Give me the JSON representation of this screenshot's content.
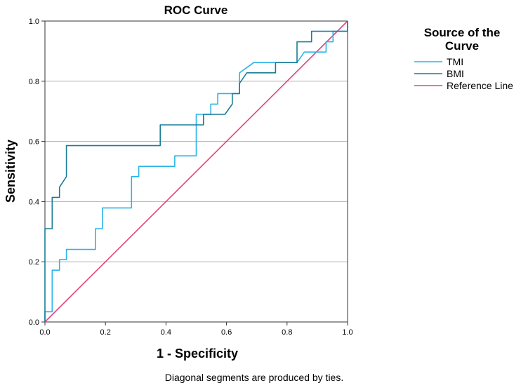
{
  "chart_data": {
    "type": "line",
    "title": "ROC Curve",
    "xlabel": "1 - Specificity",
    "ylabel": "Sensitivity",
    "xlim": [
      0,
      1
    ],
    "ylim": [
      0,
      1
    ],
    "x_ticks": [
      "0.0",
      "0.2",
      "0.4",
      "0.6",
      "0.8",
      "1.0"
    ],
    "y_ticks": [
      "0.0",
      "0.2",
      "0.4",
      "0.6",
      "0.8",
      "1.0"
    ],
    "grid": "horizontal",
    "legend": {
      "title": "Source of the Curve",
      "position": "right",
      "entries": [
        "TMI",
        "BMI",
        "Reference Line"
      ]
    },
    "footnote": "Diagonal segments are produced by ties.",
    "series": [
      {
        "name": "TMI",
        "color": "#29b5e8",
        "points": [
          [
            0,
            0
          ],
          [
            0,
            0.034
          ],
          [
            0.024,
            0.034
          ],
          [
            0.024,
            0.172
          ],
          [
            0.048,
            0.172
          ],
          [
            0.048,
            0.207
          ],
          [
            0.071,
            0.207
          ],
          [
            0.071,
            0.241
          ],
          [
            0.167,
            0.241
          ],
          [
            0.167,
            0.31
          ],
          [
            0.19,
            0.31
          ],
          [
            0.19,
            0.379
          ],
          [
            0.286,
            0.379
          ],
          [
            0.286,
            0.483
          ],
          [
            0.31,
            0.483
          ],
          [
            0.31,
            0.517
          ],
          [
            0.429,
            0.517
          ],
          [
            0.429,
            0.552
          ],
          [
            0.5,
            0.552
          ],
          [
            0.5,
            0.69
          ],
          [
            0.548,
            0.69
          ],
          [
            0.548,
            0.724
          ],
          [
            0.571,
            0.724
          ],
          [
            0.571,
            0.759
          ],
          [
            0.643,
            0.759
          ],
          [
            0.643,
            0.828
          ],
          [
            0.69,
            0.862
          ],
          [
            0.833,
            0.862
          ],
          [
            0.857,
            0.897
          ],
          [
            0.929,
            0.897
          ],
          [
            0.929,
            0.931
          ],
          [
            0.952,
            0.931
          ],
          [
            0.952,
            0.966
          ],
          [
            1,
            0.966
          ],
          [
            1,
            1
          ]
        ]
      },
      {
        "name": "BMI",
        "color": "#1a7d96",
        "points": [
          [
            0,
            0
          ],
          [
            0,
            0.31
          ],
          [
            0.024,
            0.31
          ],
          [
            0.024,
            0.414
          ],
          [
            0.048,
            0.414
          ],
          [
            0.048,
            0.448
          ],
          [
            0.071,
            0.483
          ],
          [
            0.071,
            0.586
          ],
          [
            0.381,
            0.586
          ],
          [
            0.381,
            0.655
          ],
          [
            0.524,
            0.655
          ],
          [
            0.524,
            0.69
          ],
          [
            0.595,
            0.69
          ],
          [
            0.619,
            0.724
          ],
          [
            0.619,
            0.759
          ],
          [
            0.643,
            0.759
          ],
          [
            0.643,
            0.793
          ],
          [
            0.667,
            0.828
          ],
          [
            0.762,
            0.828
          ],
          [
            0.762,
            0.862
          ],
          [
            0.833,
            0.862
          ],
          [
            0.833,
            0.931
          ],
          [
            0.881,
            0.931
          ],
          [
            0.881,
            0.966
          ],
          [
            1,
            0.966
          ],
          [
            1,
            1
          ]
        ]
      },
      {
        "name": "Reference Line",
        "color": "#e0457b",
        "points": [
          [
            0,
            0
          ],
          [
            1,
            1
          ]
        ]
      }
    ]
  }
}
